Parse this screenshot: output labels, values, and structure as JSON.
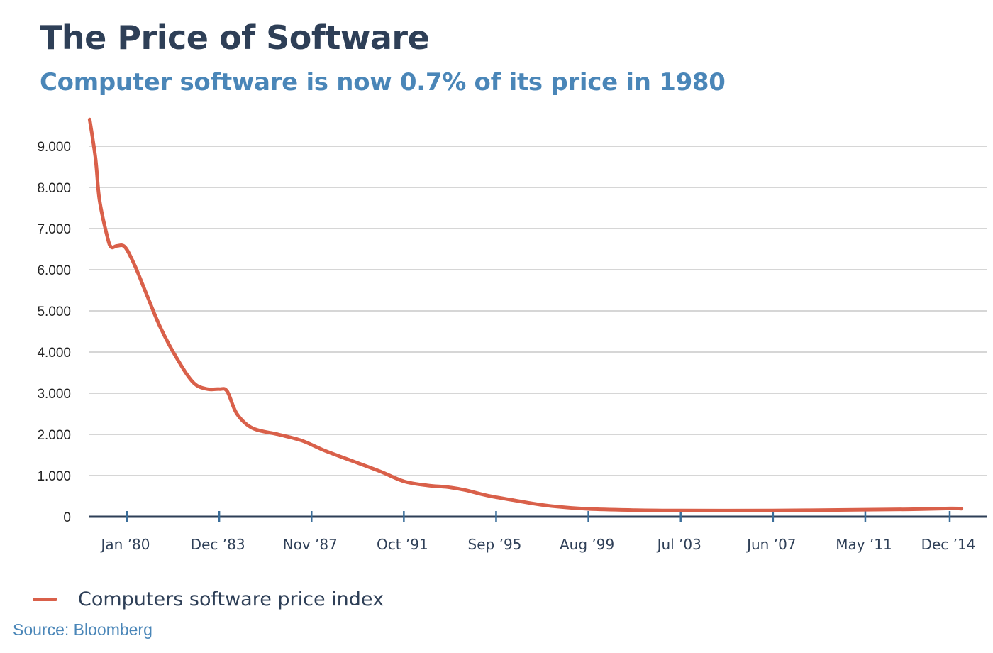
{
  "colors": {
    "line": "#d9604a",
    "title": "#2e3f57",
    "subtitle": "#4a86b8",
    "grid": "#c8c8c8",
    "axis": "#2e3f57"
  },
  "chart_data": {
    "type": "line",
    "title": "The Price of Software",
    "subtitle": "Computer software is now 0.7% of its price in 1980",
    "xlabel": "",
    "ylabel": "",
    "ylim": [
      0,
      9600
    ],
    "y_ticks": [
      0,
      1000,
      2000,
      3000,
      4000,
      5000,
      6000,
      7000,
      8000,
      9000
    ],
    "y_tick_labels": [
      "0",
      "1.000",
      "2.000",
      "3.000",
      "4.000",
      "5.000",
      "6.000",
      "7.000",
      "8.000",
      "9.000"
    ],
    "x_ticks": [
      "1980-01",
      "1983-12",
      "1987-11",
      "1991-10",
      "1995-09",
      "1999-08",
      "2003-07",
      "2007-06",
      "2011-05",
      "2014-12"
    ],
    "x_tick_labels": [
      "Jan ’80",
      "Dec ’83",
      "Nov ’87",
      "Oct ’91",
      "Sep ’95",
      "Aug ’99",
      "Jul ’03",
      "Jun ’07",
      "May ’11",
      "Dec ’14"
    ],
    "grid": true,
    "legend": "bottom-left",
    "series": [
      {
        "name": "Computers software price index",
        "color": "#d9604a",
        "x": [
          "1978-06",
          "1978-09",
          "1978-11",
          "1979-03",
          "1979-05",
          "1979-08",
          "1979-12",
          "1980-05",
          "1980-11",
          "1981-06",
          "1982-03",
          "1982-11",
          "1983-06",
          "1983-12",
          "1984-04",
          "1984-09",
          "1985-05",
          "1986-06",
          "1987-06",
          "1988-06",
          "1989-08",
          "1990-10",
          "1991-10",
          "1992-10",
          "1993-08",
          "1994-05",
          "1995-04",
          "1996-06",
          "1997-11",
          "1999-08",
          "2001-08",
          "2003-07",
          "2007-06",
          "2009-06",
          "2011-05",
          "2013-03",
          "2014-12",
          "2015-06"
        ],
        "values": [
          9650,
          8700,
          7700,
          6800,
          6550,
          6580,
          6550,
          6100,
          5400,
          4600,
          3800,
          3250,
          3100,
          3100,
          3050,
          2500,
          2150,
          2000,
          1850,
          1600,
          1350,
          1100,
          860,
          760,
          720,
          650,
          520,
          400,
          270,
          190,
          160,
          150,
          150,
          160,
          170,
          180,
          200,
          195
        ]
      }
    ]
  },
  "legend_label": "Computers software price index",
  "source": "Source:  Bloomberg"
}
